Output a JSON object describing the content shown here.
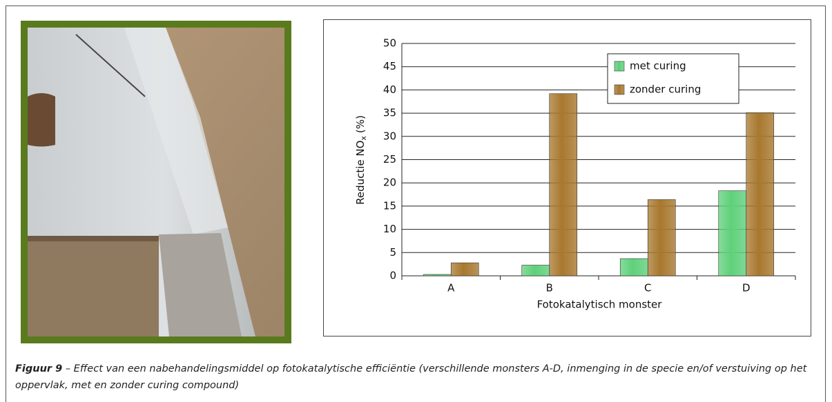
{
  "chart_data": {
    "type": "bar",
    "y_label": {
      "main": "Reductie NO",
      "sub": "x",
      "unit": "(%)"
    },
    "x_label": "Fotokatalytisch monster",
    "categories": [
      "A",
      "B",
      "C",
      "D"
    ],
    "series": [
      {
        "name": "met curing",
        "color": "#5fd07a",
        "values": [
          0.3,
          2.3,
          3.7,
          18.3
        ]
      },
      {
        "name": "zonder curing",
        "color": "#a8782e",
        "values": [
          2.8,
          39.2,
          16.4,
          35.1
        ]
      }
    ],
    "ylim": [
      0,
      50
    ],
    "yticks": [
      0,
      5,
      10,
      15,
      20,
      25,
      30,
      35,
      40,
      45,
      50
    ],
    "grid": true,
    "legend": "top-right"
  },
  "caption": {
    "label": "Figuur 9",
    "text": "– Effect van een nabehandelingsmiddel op fotokatalytische efficiëntie (verschillende monsters A-D, inmenging in de specie en/of verstuiving op het oppervlak, met en zonder curing compound)"
  }
}
